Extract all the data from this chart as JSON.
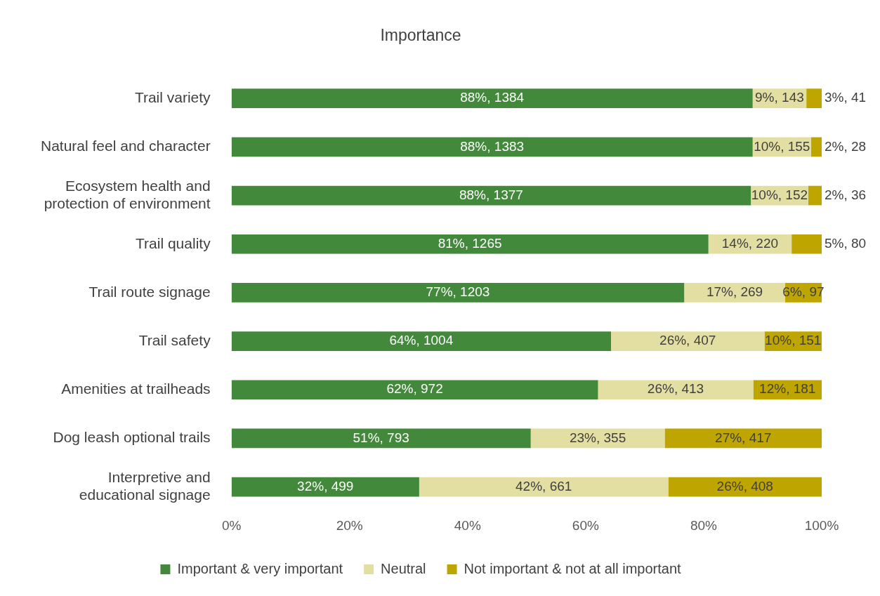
{
  "chart_data": {
    "type": "bar",
    "title": "Importance",
    "orientation": "horizontal",
    "stacked": true,
    "categories": [
      "Trail variety",
      "Natural feel and character",
      "Ecosystem health and protection of environment",
      "Trail quality",
      "Trail route signage",
      "Trail safety",
      "Amenities at trailheads",
      "Dog leash optional trails",
      "Interpretive and educational signage"
    ],
    "series": [
      {
        "name": "Important & very important",
        "color": "#43893b",
        "values": [
          88.3,
          88.3,
          88.0,
          80.8,
          76.7,
          64.3,
          62.1,
          50.7,
          31.8
        ],
        "value_labels": [
          "88%, 1384",
          "88%, 1383",
          "88%, 1377",
          "81%, 1265",
          "77%, 1203",
          "64%, 1004",
          "62%, 972",
          "51%, 793",
          "32%, 499"
        ]
      },
      {
        "name": "Neutral",
        "color": "#e3dfa3",
        "values": [
          9.1,
          9.9,
          9.7,
          14.1,
          17.1,
          26.0,
          26.3,
          22.7,
          42.2
        ],
        "value_labels": [
          "9%, 143",
          "10%, 155",
          "10%, 152",
          "14%, 220",
          "17%, 269",
          "26%, 407",
          "26%, 413",
          "23%, 355",
          "42%, 661"
        ]
      },
      {
        "name": "Not important & not at all important",
        "color": "#bfa500",
        "values": [
          2.6,
          1.8,
          2.3,
          5.1,
          6.2,
          9.7,
          11.6,
          26.6,
          26.0
        ],
        "value_labels": [
          "3%, 41",
          "2%, 28",
          "2%, 36",
          "5%, 80",
          "6%, 97",
          "10%, 151",
          "12%, 181",
          "27%, 417",
          "26%, 408"
        ]
      }
    ],
    "xlim": [
      0,
      100
    ],
    "xticks": [
      {
        "value": 0,
        "label": "0%"
      },
      {
        "value": 20,
        "label": "20%"
      },
      {
        "value": 40,
        "label": "40%"
      },
      {
        "value": 60,
        "label": "60%"
      },
      {
        "value": 80,
        "label": "80%"
      },
      {
        "value": 100,
        "label": "100%"
      }
    ],
    "grid": false,
    "legend": "bottom"
  }
}
